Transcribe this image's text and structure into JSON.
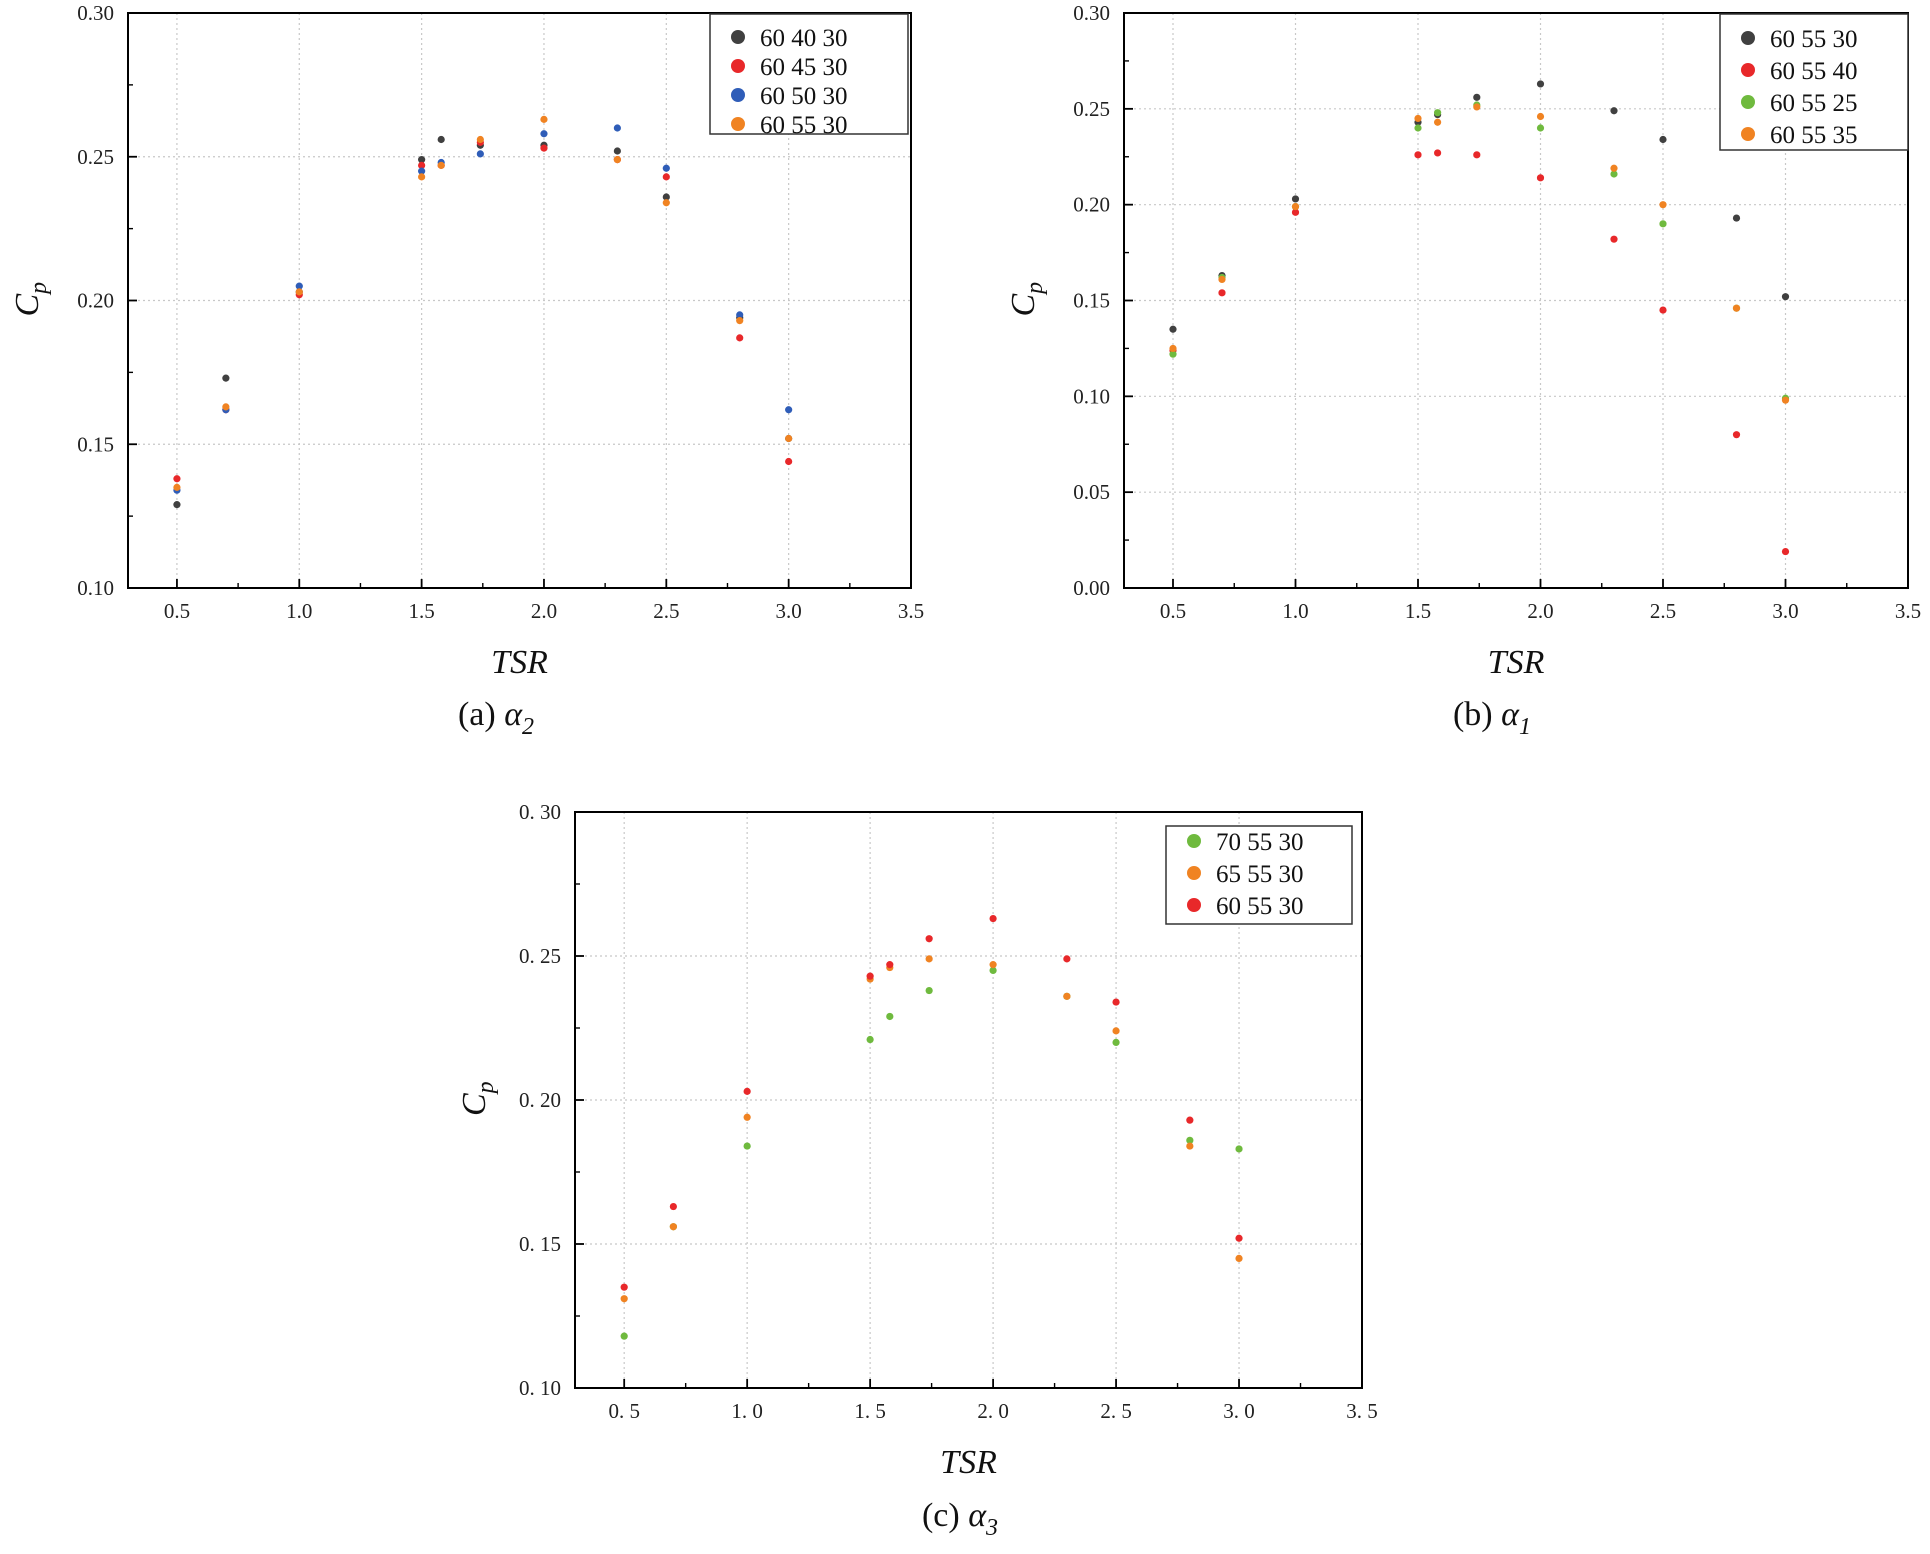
{
  "colors": {
    "black": "#404040",
    "red": "#e8282a",
    "blue": "#2f5db8",
    "orange": "#f08322",
    "green": "#6fba3e",
    "grid": "#c8c8c8",
    "axis": "#000000"
  },
  "chart_data": [
    {
      "id": "a",
      "type": "scatter",
      "caption_prefix": "(a) ",
      "caption_greek": "α",
      "caption_sub": "2",
      "xlabel": "TSR",
      "ylabel_main": "C",
      "ylabel_sub": "p",
      "xlim": [
        0.3,
        3.5
      ],
      "ylim": [
        0.1,
        0.3
      ],
      "xticks": [
        0.5,
        1.0,
        1.5,
        2.0,
        2.5,
        3.0,
        3.5
      ],
      "xtick_labels": [
        "0.5",
        "1.0",
        "1.5",
        "2.0",
        "2.5",
        "3.0",
        "3.5"
      ],
      "yticks": [
        0.1,
        0.15,
        0.2,
        0.25,
        0.3
      ],
      "ytick_labels": [
        "0.10",
        "0.15",
        "0.20",
        "0.25",
        "0.30"
      ],
      "grid": true,
      "legend_position": "top-right",
      "x": [
        0.5,
        0.7,
        1.0,
        1.5,
        1.58,
        1.74,
        2.0,
        2.3,
        2.5,
        2.8,
        3.0
      ],
      "series": [
        {
          "name": "60  40  30",
          "color": "#404040",
          "values": [
            0.129,
            0.173,
            0.203,
            0.249,
            0.256,
            0.254,
            0.254,
            0.252,
            0.236,
            0.194,
            0.152
          ]
        },
        {
          "name": "60  45  30",
          "color": "#e8282a",
          "values": [
            0.138,
            0.162,
            0.202,
            0.247,
            0.247,
            0.255,
            0.253,
            0.249,
            0.243,
            0.187,
            0.144
          ]
        },
        {
          "name": "60  50  30",
          "color": "#2f5db8",
          "values": [
            0.134,
            0.162,
            0.205,
            0.245,
            0.248,
            0.251,
            0.258,
            0.26,
            0.246,
            0.195,
            0.162
          ]
        },
        {
          "name": "60  55  30",
          "color": "#f08322",
          "values": [
            0.135,
            0.163,
            0.203,
            0.243,
            0.247,
            0.256,
            0.263,
            0.249,
            0.234,
            0.193,
            0.152
          ]
        }
      ]
    },
    {
      "id": "b",
      "type": "scatter",
      "caption_prefix": "(b) ",
      "caption_greek": "α",
      "caption_sub": "1",
      "xlabel": "TSR",
      "ylabel_main": "C",
      "ylabel_sub": "p",
      "xlim": [
        0.3,
        3.5
      ],
      "ylim": [
        0.0,
        0.3
      ],
      "xticks": [
        0.5,
        1.0,
        1.5,
        2.0,
        2.5,
        3.0,
        3.5
      ],
      "xtick_labels": [
        "0.5",
        "1.0",
        "1.5",
        "2.0",
        "2.5",
        "3.0",
        "3.5"
      ],
      "yticks": [
        0.0,
        0.05,
        0.1,
        0.15,
        0.2,
        0.25,
        0.3
      ],
      "ytick_labels": [
        "0.00",
        "0.05",
        "0.10",
        "0.15",
        "0.20",
        "0.25",
        "0.30"
      ],
      "grid": true,
      "legend_position": "top-right",
      "x": [
        0.5,
        0.7,
        1.0,
        1.5,
        1.58,
        1.74,
        2.0,
        2.3,
        2.5,
        2.8,
        3.0
      ],
      "series": [
        {
          "name": "60 55 30",
          "color": "#404040",
          "values": [
            0.135,
            0.163,
            0.203,
            0.243,
            0.247,
            0.256,
            0.263,
            0.249,
            0.234,
            0.193,
            0.152
          ]
        },
        {
          "name": "60 55 40",
          "color": "#e8282a",
          "values": [
            0.124,
            0.154,
            0.196,
            0.226,
            0.227,
            0.226,
            0.214,
            0.182,
            0.145,
            0.08,
            0.019
          ]
        },
        {
          "name": "60 55 25",
          "color": "#6fba3e",
          "values": [
            0.122,
            0.162,
            0.199,
            0.24,
            0.248,
            0.252,
            0.24,
            0.216,
            0.19,
            0.146,
            0.099
          ]
        },
        {
          "name": "60 55 35",
          "color": "#f08322",
          "values": [
            0.125,
            0.161,
            0.199,
            0.245,
            0.243,
            0.251,
            0.246,
            0.219,
            0.2,
            0.146,
            0.098
          ]
        }
      ]
    },
    {
      "id": "c",
      "type": "scatter",
      "caption_prefix": "(c) ",
      "caption_greek": "α",
      "caption_sub": "3",
      "xlabel": "TSR",
      "ylabel_main": "C",
      "ylabel_sub": "p",
      "xlim": [
        0.3,
        3.5
      ],
      "ylim": [
        0.1,
        0.3
      ],
      "xticks": [
        0.5,
        1.0,
        1.5,
        2.0,
        2.5,
        3.0,
        3.5
      ],
      "xtick_labels": [
        "0. 5",
        "1. 0",
        "1. 5",
        "2. 0",
        "2. 5",
        "3. 0",
        "3. 5"
      ],
      "yticks": [
        0.1,
        0.15,
        0.2,
        0.25,
        0.3
      ],
      "ytick_labels": [
        "0. 10",
        "0. 15",
        "0. 20",
        "0. 25",
        "0. 30"
      ],
      "grid": true,
      "legend_position": "top-right",
      "x": [
        0.5,
        0.7,
        1.0,
        1.5,
        1.58,
        1.74,
        2.0,
        2.3,
        2.5,
        2.8,
        3.0
      ],
      "series": [
        {
          "name": "70 55 30",
          "color": "#6fba3e",
          "values": [
            0.118,
            0.156,
            0.184,
            0.221,
            0.229,
            0.238,
            0.245,
            0.236,
            0.22,
            0.186,
            0.183
          ]
        },
        {
          "name": "65 55 30",
          "color": "#f08322",
          "values": [
            0.131,
            0.156,
            0.194,
            0.242,
            0.246,
            0.249,
            0.247,
            0.236,
            0.224,
            0.184,
            0.145
          ]
        },
        {
          "name": "60 55 30",
          "color": "#e8282a",
          "values": [
            0.135,
            0.163,
            0.203,
            0.243,
            0.247,
            0.256,
            0.263,
            0.249,
            0.234,
            0.193,
            0.152
          ]
        }
      ]
    }
  ]
}
